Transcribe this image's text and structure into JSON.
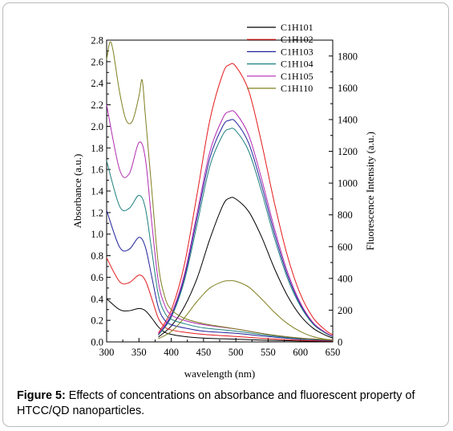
{
  "caption": {
    "label": "Figure 5:",
    "text": " Effects of concentrations on absorbance and fluorescent property of HTCC/QD nanoparticles."
  },
  "chart_data": {
    "type": "line",
    "xlabel": "wavelength (nm)",
    "ylabel_left": "Absorbance (a.u.)",
    "ylabel_right": "Fluorescence Intensity (a.u.)",
    "xlim": [
      300,
      650
    ],
    "ylim_left": [
      0,
      2.8
    ],
    "ylim_right": [
      0,
      1900
    ],
    "x_ticks": [
      "300",
      "350",
      "400",
      "450",
      "500",
      "550",
      "600",
      "650"
    ],
    "y_left_ticks": [
      "0.0",
      "0.2",
      "0.4",
      "0.6",
      "0.8",
      "1.0",
      "1.2",
      "1.4",
      "1.6",
      "1.8",
      "2.0",
      "2.2",
      "2.4",
      "2.6",
      "2.8"
    ],
    "y_right_ticks": [
      "0",
      "200",
      "400",
      "600",
      "800",
      "1000",
      "1200",
      "1400",
      "1600",
      "1800"
    ],
    "grid": false,
    "legend_position": "top-right",
    "series": [
      {
        "name": "C1H101",
        "color": "#000000",
        "absorbance": {
          "x": [
            300,
            320,
            335,
            350,
            360,
            370,
            380,
            390,
            400,
            420,
            450,
            500,
            550,
            600,
            650
          ],
          "y": [
            0.4,
            0.3,
            0.29,
            0.31,
            0.29,
            0.22,
            0.14,
            0.09,
            0.07,
            0.05,
            0.035,
            0.025,
            0.015,
            0.008,
            0.004
          ]
        },
        "fluorescence": {
          "x": [
            380,
            400,
            420,
            440,
            460,
            480,
            490,
            500,
            520,
            540,
            560,
            580,
            600,
            620,
            640,
            650
          ],
          "y": [
            30,
            100,
            220,
            400,
            650,
            860,
            905,
            900,
            820,
            660,
            460,
            290,
            165,
            85,
            40,
            25
          ]
        }
      },
      {
        "name": "C1H102",
        "color": "#e41a1c",
        "absorbance": {
          "x": [
            300,
            320,
            335,
            350,
            360,
            370,
            380,
            390,
            400,
            420,
            450,
            500,
            550,
            600,
            650
          ],
          "y": [
            0.78,
            0.56,
            0.55,
            0.62,
            0.57,
            0.4,
            0.22,
            0.14,
            0.11,
            0.09,
            0.07,
            0.05,
            0.03,
            0.015,
            0.008
          ]
        },
        "fluorescence": {
          "x": [
            380,
            400,
            420,
            440,
            460,
            480,
            490,
            500,
            520,
            540,
            560,
            580,
            600,
            620,
            640,
            650
          ],
          "y": [
            55,
            200,
            480,
            930,
            1400,
            1690,
            1745,
            1735,
            1580,
            1250,
            870,
            540,
            300,
            150,
            70,
            45
          ]
        }
      },
      {
        "name": "C1H103",
        "color": "#22229c",
        "absorbance": {
          "x": [
            300,
            320,
            335,
            350,
            360,
            370,
            380,
            390,
            400,
            420,
            450,
            500,
            550,
            600,
            650
          ],
          "y": [
            1.22,
            0.88,
            0.86,
            0.97,
            0.88,
            0.6,
            0.32,
            0.2,
            0.16,
            0.13,
            0.1,
            0.08,
            0.05,
            0.025,
            0.012
          ]
        },
        "fluorescence": {
          "x": [
            380,
            400,
            420,
            440,
            460,
            480,
            490,
            500,
            520,
            540,
            560,
            580,
            600,
            620,
            640,
            650
          ],
          "y": [
            45,
            165,
            400,
            780,
            1160,
            1360,
            1395,
            1385,
            1250,
            985,
            680,
            420,
            235,
            115,
            55,
            35
          ]
        }
      },
      {
        "name": "C1H104",
        "color": "#1f7f7f",
        "absorbance": {
          "x": [
            300,
            320,
            335,
            350,
            360,
            370,
            380,
            390,
            400,
            420,
            450,
            500,
            550,
            600,
            650
          ],
          "y": [
            1.68,
            1.26,
            1.24,
            1.36,
            1.24,
            0.84,
            0.44,
            0.27,
            0.21,
            0.17,
            0.13,
            0.1,
            0.06,
            0.03,
            0.015
          ]
        },
        "fluorescence": {
          "x": [
            380,
            400,
            420,
            440,
            460,
            480,
            490,
            500,
            520,
            540,
            560,
            580,
            600,
            620,
            640,
            650
          ],
          "y": [
            42,
            155,
            380,
            740,
            1110,
            1305,
            1340,
            1330,
            1200,
            945,
            650,
            400,
            225,
            110,
            52,
            33
          ]
        }
      },
      {
        "name": "C1H105",
        "color": "#b02ab0",
        "absorbance": {
          "x": [
            300,
            320,
            335,
            350,
            360,
            370,
            380,
            390,
            400,
            420,
            450,
            500,
            550,
            600,
            650
          ],
          "y": [
            2.2,
            1.6,
            1.56,
            1.85,
            1.7,
            1.1,
            0.56,
            0.34,
            0.25,
            0.2,
            0.16,
            0.12,
            0.07,
            0.035,
            0.018
          ]
        },
        "fluorescence": {
          "x": [
            380,
            400,
            420,
            440,
            460,
            480,
            490,
            500,
            520,
            540,
            560,
            580,
            600,
            620,
            640,
            650
          ],
          "y": [
            48,
            175,
            420,
            810,
            1200,
            1410,
            1450,
            1440,
            1300,
            1025,
            710,
            440,
            245,
            120,
            57,
            37
          ]
        }
      },
      {
        "name": "C1H110",
        "color": "#7f7f1f",
        "absorbance": {
          "x": [
            300,
            305,
            310,
            320,
            330,
            340,
            350,
            355,
            360,
            370,
            380,
            390,
            400,
            420,
            450,
            500,
            550,
            600,
            650
          ],
          "y": [
            2.62,
            2.78,
            2.7,
            2.32,
            2.06,
            2.05,
            2.28,
            2.43,
            2.1,
            1.4,
            0.72,
            0.42,
            0.3,
            0.22,
            0.17,
            0.12,
            0.07,
            0.035,
            0.018
          ]
        },
        "fluorescence": {
          "x": [
            380,
            400,
            420,
            440,
            460,
            480,
            490,
            500,
            520,
            540,
            560,
            580,
            600,
            620,
            640,
            650
          ],
          "y": [
            20,
            65,
            150,
            255,
            340,
            380,
            385,
            382,
            345,
            270,
            185,
            115,
            65,
            33,
            16,
            10
          ]
        }
      }
    ]
  }
}
